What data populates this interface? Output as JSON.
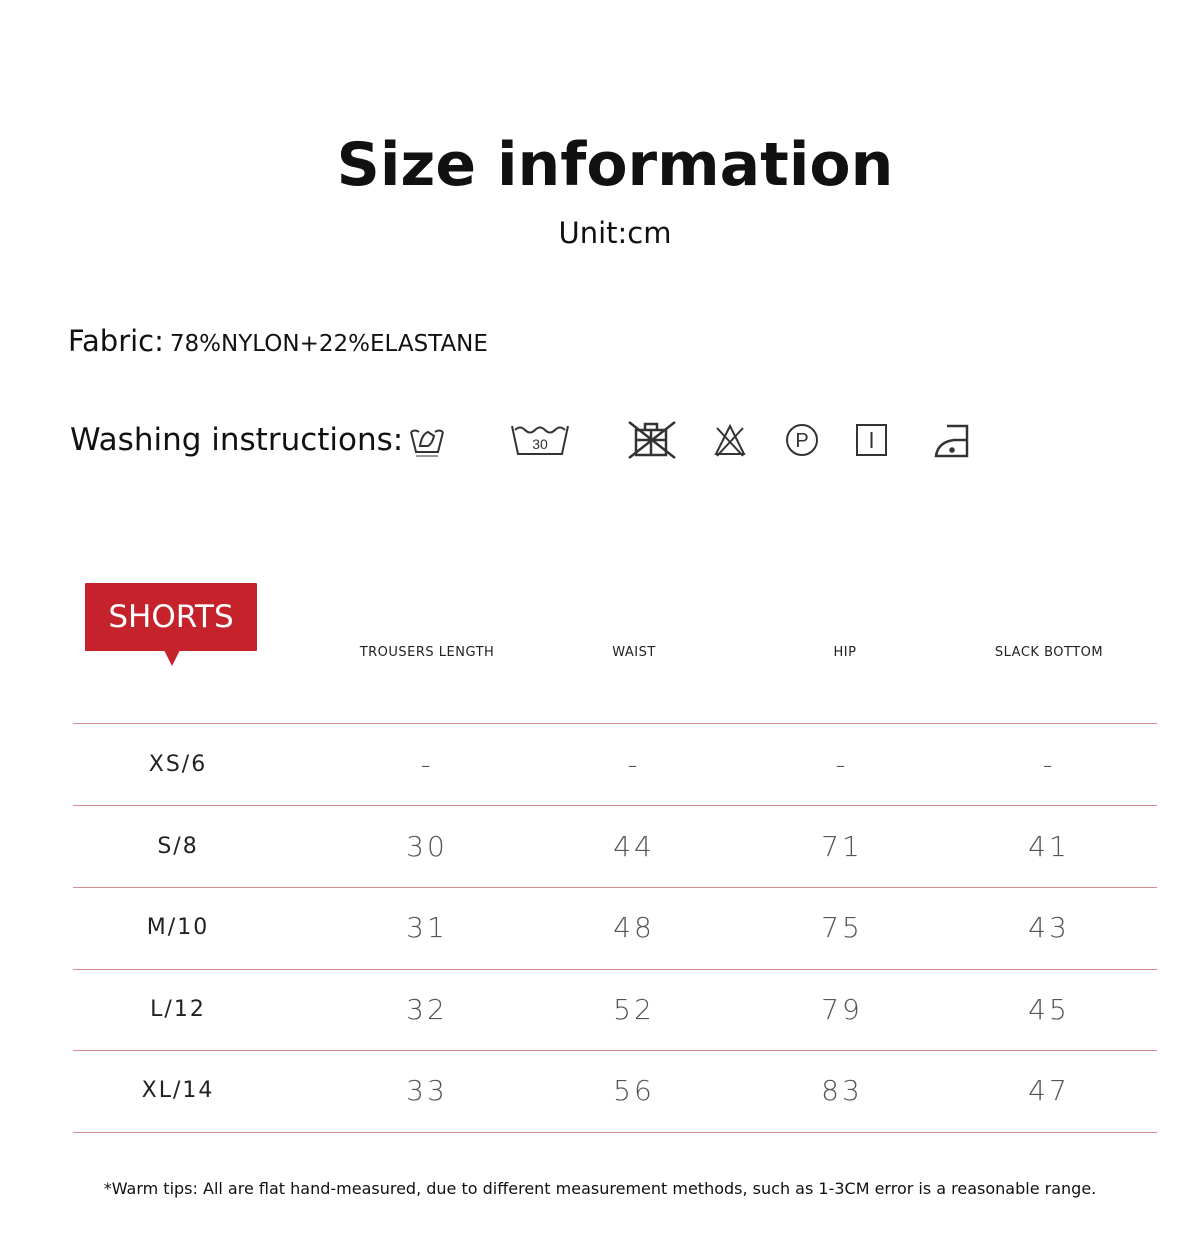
{
  "title": "Size information",
  "unit": "Unit:cm",
  "fabric": {
    "label": "Fabric:",
    "value": "78%NYLON+22%ELASTANE"
  },
  "washing": {
    "label": "Washing instructions:",
    "icons": [
      "hand-wash-icon",
      "wash-30-icon",
      "do-not-tumble-dry-icon",
      "do-not-bleach-icon",
      "professional-dry-clean-p-icon",
      "line-dry-icon",
      "iron-low-heat-icon"
    ],
    "wash_temp": "30",
    "dry_clean_letter": "P"
  },
  "table": {
    "badge": "SHORTS",
    "badge_color": "#c5222b",
    "headers": [
      "TROUSERS LENGTH",
      "WAIST",
      "HIP",
      "SLACK BOTTOM"
    ],
    "rows": [
      {
        "size": "XS/6",
        "values": [
          "-",
          "-",
          "-",
          "-"
        ]
      },
      {
        "size": "S/8",
        "values": [
          "30",
          "44",
          "71",
          "41"
        ]
      },
      {
        "size": "M/10",
        "values": [
          "31",
          "48",
          "75",
          "43"
        ]
      },
      {
        "size": "L/12",
        "values": [
          "32",
          "52",
          "79",
          "45"
        ]
      },
      {
        "size": "XL/14",
        "values": [
          "33",
          "56",
          "83",
          "47"
        ]
      }
    ]
  },
  "tip": "*Warm tips: All are flat hand-measured, due to different measurement methods, such as 1-3CM error is a reasonable range."
}
